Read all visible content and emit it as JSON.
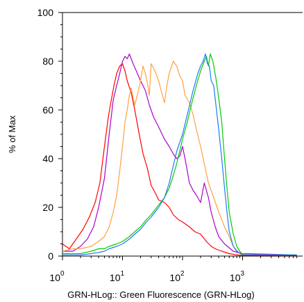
{
  "chart_data": {
    "type": "line",
    "title": "",
    "xlabel": "GRN-HLog:: Green Fluorescence (GRN-HLog)",
    "ylabel": "% of Max",
    "xscale": "log",
    "xlim": [
      1,
      8000
    ],
    "ylim": [
      0,
      100
    ],
    "y_ticks": [
      "0",
      "20",
      "40",
      "60",
      "80",
      "100"
    ],
    "x_ticks": [
      {
        "base": "10",
        "exp": "0",
        "value": 1
      },
      {
        "base": "10",
        "exp": "1",
        "value": 10
      },
      {
        "base": "10",
        "exp": "2",
        "value": 100
      },
      {
        "base": "10",
        "exp": "3",
        "value": 1000
      }
    ],
    "grid": false,
    "legend": false,
    "series": [
      {
        "color": "#ff0000",
        "x": [
          1,
          1.3,
          1.7,
          2.2,
          2.8,
          3.5,
          4.2,
          5,
          5.8,
          6.5,
          7.2,
          8,
          9,
          10,
          11,
          12,
          14,
          16,
          19,
          22,
          26,
          30,
          35,
          40,
          50,
          60,
          70,
          85,
          100,
          130,
          160,
          200,
          250,
          300,
          350,
          450,
          600,
          800,
          1000,
          1500,
          8000
        ],
        "y": [
          5,
          3,
          7,
          11,
          16,
          22,
          30,
          45,
          57,
          64,
          70,
          75,
          78,
          79,
          76,
          72,
          67,
          60,
          50,
          42,
          36,
          29,
          26,
          23,
          22,
          20,
          17,
          15,
          14,
          12,
          10,
          9,
          6,
          4,
          3,
          2,
          1,
          0.5,
          0.3,
          0.3,
          0.3
        ]
      },
      {
        "color": "#aa00cc",
        "x": [
          1,
          1.5,
          2,
          2.6,
          3.3,
          4,
          5,
          6,
          7,
          8,
          9,
          10,
          11,
          12,
          13,
          15,
          17,
          20,
          24,
          28,
          33,
          40,
          50,
          60,
          70,
          80,
          90,
          100,
          110,
          120,
          130,
          150,
          170,
          200,
          230,
          270,
          300,
          350,
          400,
          500,
          700,
          1000,
          8000
        ],
        "y": [
          2,
          2,
          4,
          7,
          12,
          20,
          32,
          50,
          64,
          70,
          75,
          80,
          82,
          81,
          83,
          79,
          76,
          72,
          68,
          62,
          57,
          53,
          48,
          45,
          42,
          40,
          41,
          45,
          40,
          35,
          30,
          27,
          25,
          22,
          30,
          24,
          18,
          12,
          8,
          5,
          2,
          1,
          0.5
        ]
      },
      {
        "color": "#ffa040",
        "x": [
          1,
          1.5,
          2,
          3,
          4,
          5,
          6,
          7,
          8,
          9,
          10,
          11,
          12,
          13,
          14,
          15,
          16,
          18,
          20,
          22,
          24,
          26,
          28,
          30,
          33,
          36,
          40,
          45,
          50,
          55,
          60,
          70,
          80,
          90,
          100,
          110,
          130,
          150,
          170,
          200,
          230,
          270,
          320,
          400,
          500,
          600,
          700,
          900,
          1200,
          8000
        ],
        "y": [
          2,
          3,
          3,
          4,
          6,
          8,
          12,
          18,
          25,
          35,
          45,
          55,
          60,
          66,
          69,
          65,
          62,
          67,
          72,
          78,
          75,
          71,
          66,
          79,
          77,
          75,
          72,
          67,
          63,
          70,
          75,
          80,
          78,
          74,
          72,
          66,
          63,
          58,
          52,
          45,
          38,
          30,
          25,
          18,
          12,
          8,
          4,
          1,
          0.5,
          0.5
        ]
      },
      {
        "color": "#00cc00",
        "x": [
          1,
          2,
          3,
          4,
          5,
          6,
          8,
          10,
          13,
          16,
          20,
          25,
          30,
          40,
          50,
          60,
          70,
          80,
          100,
          120,
          140,
          170,
          200,
          230,
          250,
          270,
          290,
          320,
          360,
          400,
          450,
          500,
          550,
          600,
          700,
          800,
          900,
          1000,
          8000
        ],
        "y": [
          1,
          1,
          2,
          3,
          3,
          4,
          5,
          6,
          8,
          10,
          12,
          15,
          17,
          21,
          24,
          28,
          33,
          38,
          48,
          55,
          62,
          70,
          76,
          80,
          82,
          78,
          83,
          80,
          73,
          65,
          55,
          40,
          28,
          18,
          9,
          4,
          2,
          0.5,
          0.5
        ]
      },
      {
        "color": "#1e78ff",
        "x": [
          1,
          2,
          3,
          4,
          5,
          6,
          8,
          10,
          13,
          16,
          20,
          25,
          30,
          40,
          50,
          60,
          70,
          80,
          100,
          120,
          150,
          180,
          200,
          220,
          240,
          260,
          280,
          300,
          330,
          360,
          400,
          450,
          500,
          550,
          600,
          700,
          800,
          1000,
          8000
        ],
        "y": [
          0.5,
          0.5,
          1,
          1.5,
          2,
          3,
          4,
          5,
          7,
          9,
          11,
          14,
          16,
          20,
          24,
          30,
          37,
          43,
          50,
          58,
          68,
          75,
          78,
          80,
          83,
          79,
          78,
          72,
          70,
          62,
          52,
          40,
          28,
          18,
          10,
          4,
          2,
          0.5,
          0.5
        ]
      }
    ]
  }
}
